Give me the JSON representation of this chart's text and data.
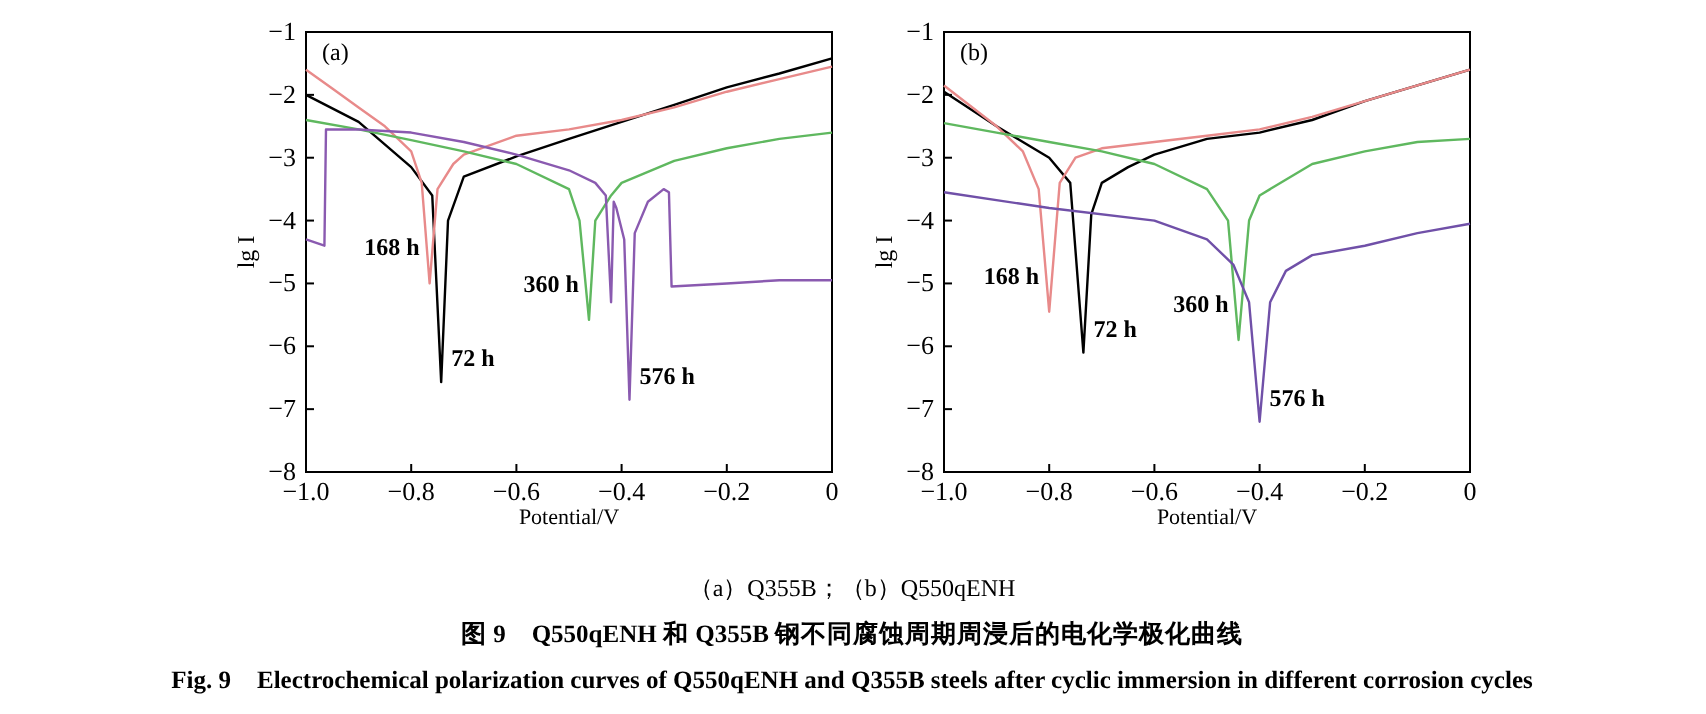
{
  "chart_data": [
    {
      "type": "line",
      "title": "(a)",
      "xlabel": "Potential/V",
      "ylabel": "lg I",
      "xlim": [
        -1,
        0
      ],
      "ylim": [
        -8,
        -1
      ],
      "xticks": [
        {
          "value": -1,
          "label": "−1.0"
        },
        {
          "value": -0.8,
          "label": "−0.8"
        },
        {
          "value": -0.6,
          "label": "−0.6"
        },
        {
          "value": -0.4,
          "label": "−0.4"
        },
        {
          "value": -0.2,
          "label": "−0.2"
        },
        0
      ],
      "yticks": [
        {
          "value": -8,
          "label": "−8"
        },
        {
          "value": -7,
          "label": "−7"
        },
        {
          "value": -6,
          "label": "−6"
        },
        {
          "value": -5,
          "label": "−5"
        },
        {
          "value": -4,
          "label": "−4"
        },
        {
          "value": -3,
          "label": "−3"
        },
        {
          "value": -2,
          "label": "−2"
        },
        {
          "value": -1,
          "label": "−1"
        }
      ],
      "annotations": [
        "（a）Q355B；（b）Q550qENH",
        "图 9　Q550qENH 和 Q355B 钢不同腐蚀周期周浸后的电化学极化曲线",
        "Fig. 9　Electrochemical polarization curves of Q550qENH and Q355B steels after cyclic immersion in different corrosion cycles"
      ],
      "series": [
        {
          "name": "72 h",
          "color": "#000000",
          "x": [
            -1,
            -0.9,
            -0.8,
            -0.76,
            -0.743,
            -0.73,
            -0.7,
            -0.6,
            -0.5,
            -0.4,
            -0.3,
            -0.2,
            -0.1,
            0
          ],
          "values": [
            -2.0,
            -2.43,
            -3.15,
            -3.6,
            -6.57,
            -4.0,
            -3.3,
            -2.98,
            -2.7,
            -2.43,
            -2.16,
            -1.88,
            -1.66,
            -1.42
          ]
        },
        {
          "name": "168 h",
          "color": "#e88a8a",
          "x": [
            -1,
            -0.95,
            -0.9,
            -0.85,
            -0.8,
            -0.78,
            -0.765,
            -0.75,
            -0.72,
            -0.7,
            -0.6,
            -0.5,
            -0.4,
            -0.3,
            -0.2,
            -0.1,
            0
          ],
          "values": [
            -1.6,
            -1.9,
            -2.2,
            -2.5,
            -2.9,
            -3.4,
            -5.0,
            -3.5,
            -3.1,
            -2.95,
            -2.65,
            -2.55,
            -2.4,
            -2.2,
            -1.95,
            -1.75,
            -1.55
          ]
        },
        {
          "name": "360 h",
          "color": "#5fb85f",
          "x": [
            -1,
            -0.9,
            -0.8,
            -0.7,
            -0.6,
            -0.5,
            -0.48,
            -0.462,
            -0.45,
            -0.42,
            -0.4,
            -0.3,
            -0.2,
            -0.1,
            0
          ],
          "values": [
            -2.4,
            -2.55,
            -2.72,
            -2.9,
            -3.1,
            -3.5,
            -4.0,
            -5.58,
            -4.0,
            -3.6,
            -3.4,
            -3.05,
            -2.85,
            -2.7,
            -2.6
          ]
        },
        {
          "name": "576 h",
          "color": "#8a5ab0",
          "x": [
            -1,
            -0.965,
            -0.962,
            -0.9,
            -0.8,
            -0.7,
            -0.6,
            -0.5,
            -0.45,
            -0.43,
            -0.42,
            -0.415,
            -0.41,
            -0.395,
            -0.385,
            -0.375,
            -0.35,
            -0.32,
            -0.31,
            -0.305,
            -0.2,
            -0.1,
            0
          ],
          "values": [
            -4.3,
            -4.4,
            -2.55,
            -2.55,
            -2.6,
            -2.75,
            -2.95,
            -3.2,
            -3.4,
            -3.6,
            -5.3,
            -3.7,
            -3.8,
            -4.3,
            -6.85,
            -4.2,
            -3.7,
            -3.5,
            -3.55,
            -5.05,
            -5.0,
            -4.95,
            -4.95
          ]
        }
      ]
    },
    {
      "type": "line",
      "title": "(b)",
      "xlabel": "Potential/V",
      "ylabel": "lg I",
      "xlim": [
        -1,
        0
      ],
      "ylim": [
        -8,
        -1
      ],
      "xticks": [
        {
          "value": -1,
          "label": "−1.0"
        },
        {
          "value": -0.8,
          "label": "−0.8"
        },
        {
          "value": -0.6,
          "label": "−0.6"
        },
        {
          "value": -0.4,
          "label": "−0.4"
        },
        {
          "value": -0.2,
          "label": "−0.2"
        },
        0
      ],
      "yticks": [
        {
          "value": -8,
          "label": "−8"
        },
        {
          "value": -7,
          "label": "−7"
        },
        {
          "value": -6,
          "label": "−6"
        },
        {
          "value": -5,
          "label": "−5"
        },
        {
          "value": -4,
          "label": "−4"
        },
        {
          "value": -3,
          "label": "−3"
        },
        {
          "value": -2,
          "label": "−2"
        },
        {
          "value": -1,
          "label": "−1"
        }
      ],
      "series": [
        {
          "name": "72 h",
          "color": "#000000",
          "x": [
            -1,
            -0.9,
            -0.8,
            -0.76,
            -0.735,
            -0.72,
            -0.7,
            -0.65,
            -0.6,
            -0.5,
            -0.4,
            -0.3,
            -0.2,
            -0.1,
            0
          ],
          "values": [
            -1.95,
            -2.5,
            -3.0,
            -3.4,
            -6.1,
            -3.9,
            -3.4,
            -3.15,
            -2.95,
            -2.7,
            -2.6,
            -2.4,
            -2.1,
            -1.85,
            -1.6
          ]
        },
        {
          "name": "168 h",
          "color": "#e88a8a",
          "x": [
            -1,
            -0.9,
            -0.85,
            -0.82,
            -0.8,
            -0.78,
            -0.75,
            -0.7,
            -0.6,
            -0.5,
            -0.4,
            -0.3,
            -0.2,
            0
          ],
          "values": [
            -1.85,
            -2.5,
            -2.9,
            -3.5,
            -5.45,
            -3.4,
            -3.0,
            -2.85,
            -2.75,
            -2.65,
            -2.55,
            -2.35,
            -2.1,
            -1.6
          ]
        },
        {
          "name": "360 h",
          "color": "#5fb85f",
          "x": [
            -1,
            -0.9,
            -0.8,
            -0.7,
            -0.6,
            -0.5,
            -0.46,
            -0.44,
            -0.42,
            -0.4,
            -0.3,
            -0.2,
            -0.1,
            0
          ],
          "values": [
            -2.45,
            -2.6,
            -2.75,
            -2.9,
            -3.1,
            -3.5,
            -4.0,
            -5.9,
            -4.0,
            -3.6,
            -3.1,
            -2.9,
            -2.75,
            -2.7
          ]
        },
        {
          "name": "576 h",
          "color": "#7050a8",
          "x": [
            -1,
            -0.8,
            -0.6,
            -0.5,
            -0.45,
            -0.42,
            -0.4,
            -0.38,
            -0.35,
            -0.3,
            -0.2,
            -0.1,
            0
          ],
          "values": [
            -3.55,
            -3.8,
            -4.0,
            -4.3,
            -4.7,
            -5.3,
            -7.2,
            -5.3,
            -4.8,
            -4.55,
            -4.4,
            -4.2,
            -4.05
          ]
        }
      ]
    }
  ]
}
